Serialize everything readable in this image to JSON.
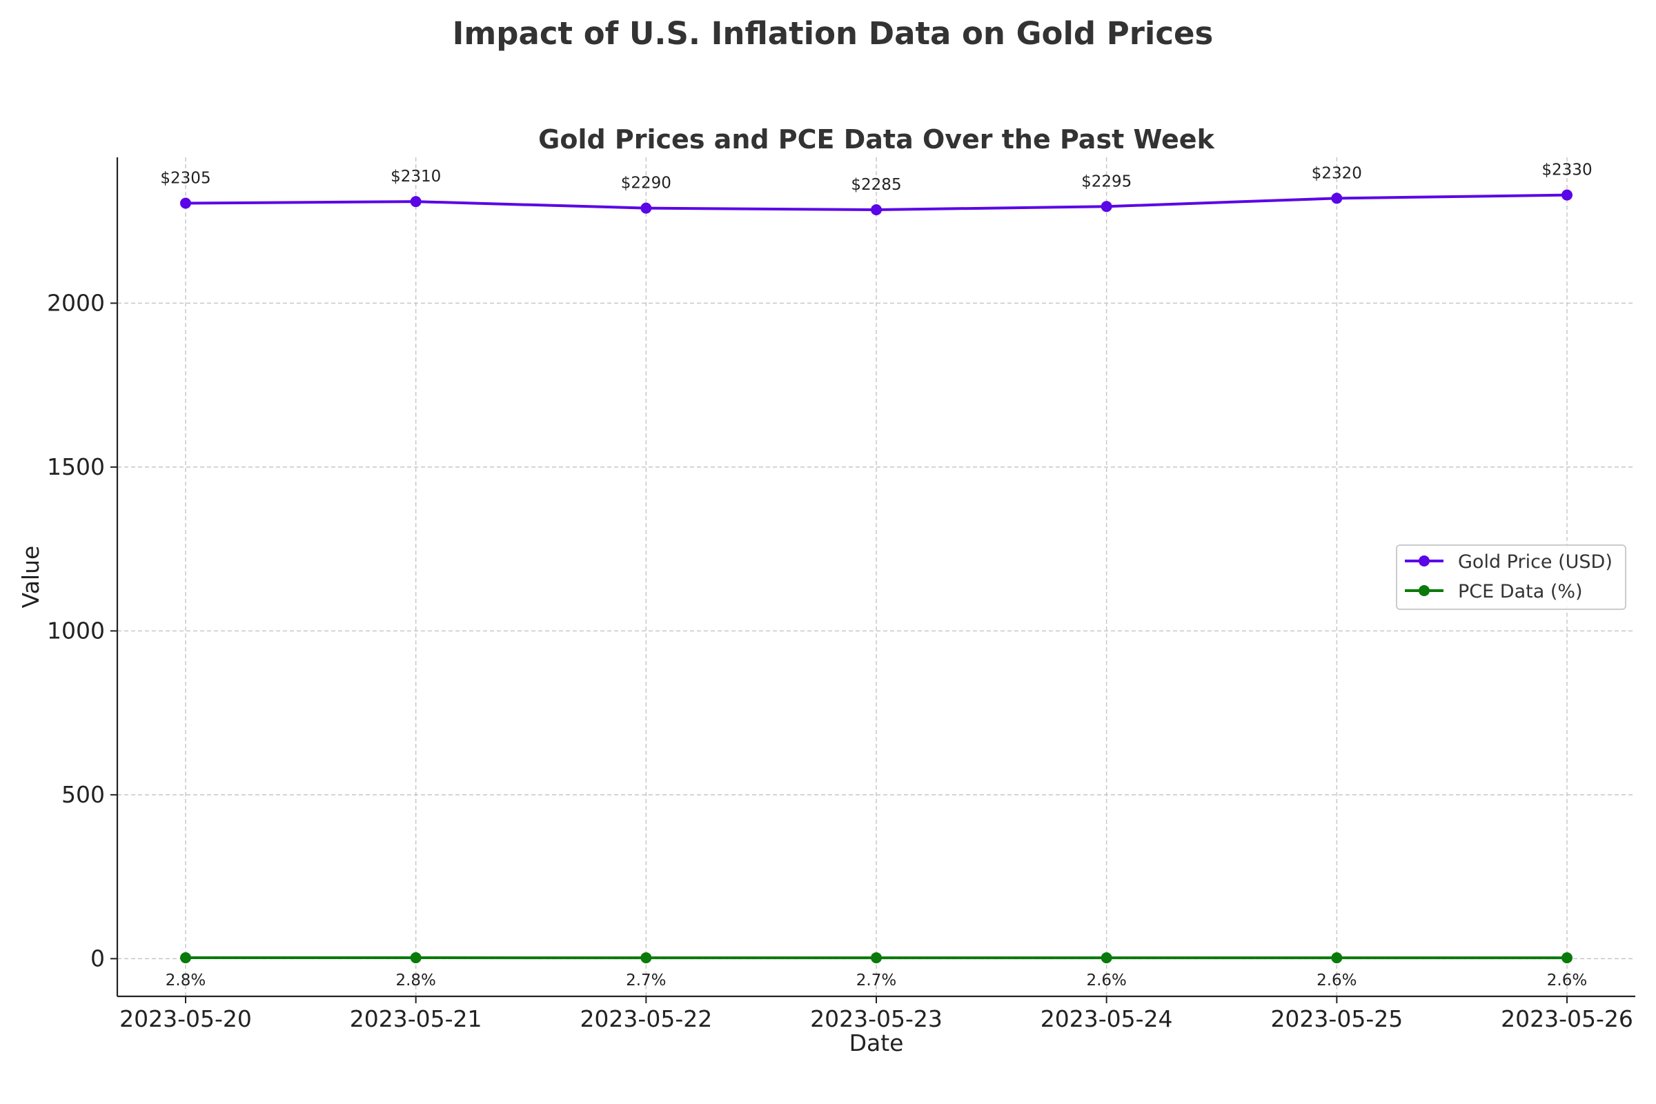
{
  "figure": {
    "suptitle": "Impact of U.S. Inflation Data on Gold Prices"
  },
  "chart_data": {
    "type": "line",
    "title": "Gold Prices and PCE Data Over the Past Week",
    "xlabel": "Date",
    "ylabel": "Value",
    "x": [
      "2023-05-20",
      "2023-05-21",
      "2023-05-22",
      "2023-05-23",
      "2023-05-24",
      "2023-05-25",
      "2023-05-26"
    ],
    "ylim": [
      -115,
      2445
    ],
    "yticks": [
      0,
      500,
      1000,
      1500,
      2000
    ],
    "grid": true,
    "legend_position": "center-right",
    "series": [
      {
        "name": "Gold Price (USD)",
        "color": "#5a06e6",
        "marker": "circle",
        "values": [
          2305,
          2310,
          2290,
          2285,
          2295,
          2320,
          2330
        ],
        "labels": [
          "$2305",
          "$2310",
          "$2290",
          "$2285",
          "$2295",
          "$2320",
          "$2330"
        ]
      },
      {
        "name": "PCE Data (%)",
        "color": "#0a7a0a",
        "marker": "circle",
        "values": [
          2.8,
          2.8,
          2.7,
          2.7,
          2.6,
          2.6,
          2.6
        ],
        "labels": [
          "2.8%",
          "2.8%",
          "2.7%",
          "2.7%",
          "2.6%",
          "2.6%",
          "2.6%"
        ]
      }
    ]
  }
}
